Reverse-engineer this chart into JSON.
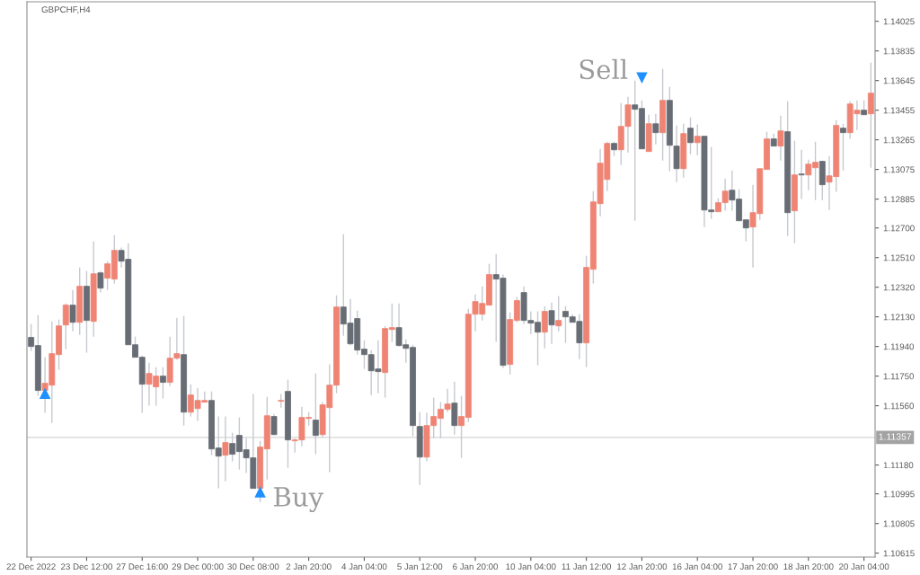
{
  "chart_data": {
    "type": "candlestick",
    "title": "GBPCHF,H4",
    "categories": [
      "22 Dec 2022",
      null,
      null,
      null,
      null,
      null,
      null,
      null,
      "23 Dec 12:00",
      null,
      null,
      null,
      null,
      null,
      null,
      null,
      "27 Dec 16:00",
      null,
      null,
      null,
      null,
      null,
      null,
      null,
      "29 Dec 00:00",
      null,
      null,
      null,
      null,
      null,
      null,
      null,
      "30 Dec 08:00",
      null,
      null,
      null,
      null,
      null,
      null,
      null,
      "2 Jan 20:00",
      null,
      null,
      null,
      null,
      null,
      null,
      null,
      "4 Jan 04:00",
      null,
      null,
      null,
      null,
      null,
      null,
      null,
      "5 Jan 12:00",
      null,
      null,
      null,
      null,
      null,
      null,
      null,
      "6 Jan 20:00",
      null,
      null,
      null,
      null,
      null,
      null,
      null,
      "10 Jan 04:00",
      null,
      null,
      null,
      null,
      null,
      null,
      null,
      "11 Jan 12:00",
      null,
      null,
      null,
      null,
      null,
      null,
      null,
      "12 Jan 20:00",
      null,
      null,
      null,
      null,
      null,
      null,
      null,
      "16 Jan 04:00",
      null,
      null,
      null,
      null,
      null,
      null,
      null,
      "17 Jan 20:00",
      null,
      null,
      null,
      null,
      null,
      null,
      null,
      "18 Jan 20:00",
      null,
      null,
      null,
      null,
      null,
      null,
      null,
      "20 Jan 04:00",
      null
    ],
    "ohlc": [
      [
        1.11998,
        1.12084,
        1.11911,
        1.1194
      ],
      [
        1.11946,
        1.12142,
        1.11623,
        1.11658
      ],
      [
        1.11658,
        1.11871,
        1.11514,
        1.11704
      ],
      [
        1.11692,
        1.12101,
        1.1145,
        1.11894
      ],
      [
        1.11888,
        1.12113,
        1.1179,
        1.12072
      ],
      [
        1.12078,
        1.12216,
        1.11923,
        1.12205
      ],
      [
        1.12205,
        1.12303,
        1.12038,
        1.12095
      ],
      [
        1.12095,
        1.12447,
        1.12015,
        1.12326
      ],
      [
        1.12326,
        1.12424,
        1.119,
        1.12107
      ],
      [
        1.12101,
        1.12614,
        1.12003,
        1.12406
      ],
      [
        1.12412,
        1.12424,
        1.12286,
        1.12314
      ],
      [
        1.12378,
        1.12487,
        1.12303,
        1.1247
      ],
      [
        1.12372,
        1.12654,
        1.12343,
        1.12556
      ],
      [
        1.12556,
        1.12574,
        1.12447,
        1.12487
      ],
      [
        1.12499,
        1.12602,
        1.11951,
        1.11951
      ],
      [
        1.11951,
        1.12003,
        1.11871,
        1.11871
      ],
      [
        1.11871,
        1.11882,
        1.11514,
        1.11698
      ],
      [
        1.11698,
        1.11836,
        1.1156,
        1.11767
      ],
      [
        1.11681,
        1.11807,
        1.1156,
        1.1175
      ],
      [
        1.1175,
        1.11807,
        1.11606,
        1.1171
      ],
      [
        1.1171,
        1.12003,
        1.11686,
        1.11865
      ],
      [
        1.11865,
        1.12124,
        1.11854,
        1.11894
      ],
      [
        1.11888,
        1.12136,
        1.11433,
        1.11519
      ],
      [
        1.11519,
        1.11698,
        1.11491,
        1.11629
      ],
      [
        1.11542,
        1.11675,
        1.11462,
        1.11594
      ],
      [
        1.11583,
        1.11652,
        1.11583,
        1.11594
      ],
      [
        1.11594,
        1.11652,
        1.11243,
        1.11283
      ],
      [
        1.11289,
        1.11491,
        1.1103,
        1.11237
      ],
      [
        1.11243,
        1.11491,
        1.11076,
        1.11324
      ],
      [
        1.11318,
        1.11387,
        1.11203,
        1.11249
      ],
      [
        1.1137,
        1.11485,
        1.11151,
        1.11266
      ],
      [
        1.11278,
        1.11352,
        1.11128,
        1.11226
      ],
      [
        1.11226,
        1.11635,
        1.1103,
        1.1103
      ],
      [
        1.1103,
        1.11335,
        1.10943,
        1.11295
      ],
      [
        1.11283,
        1.11617,
        1.11087,
        1.11496
      ],
      [
        1.11491,
        1.11508,
        1.11375,
        1.11375
      ],
      [
        1.11589,
        1.11635,
        1.11548,
        1.11594
      ],
      [
        1.11652,
        1.11727,
        1.11162,
        1.11341
      ],
      [
        1.11335,
        1.11352,
        1.1126,
        1.11341
      ],
      [
        1.11341,
        1.11554,
        1.113,
        1.11485
      ],
      [
        1.11479,
        1.11519,
        1.11433,
        1.11485
      ],
      [
        1.11468,
        1.11767,
        1.11249,
        1.1137
      ],
      [
        1.11375,
        1.11583,
        1.11358,
        1.11566
      ],
      [
        1.11548,
        1.11825,
        1.11134,
        1.11692
      ],
      [
        1.11692,
        1.12268,
        1.1164,
        1.12193
      ],
      [
        1.12193,
        1.1266,
        1.12009,
        1.12084
      ],
      [
        1.1209,
        1.12245,
        1.11946,
        1.11957
      ],
      [
        1.12119,
        1.1217,
        1.11888,
        1.11917
      ],
      [
        1.11923,
        1.1198,
        1.11796,
        1.11888
      ],
      [
        1.11888,
        1.11917,
        1.11629,
        1.11784
      ],
      [
        1.11796,
        1.1198,
        1.1164,
        1.11779
      ],
      [
        1.11773,
        1.12072,
        1.11612,
        1.12055
      ],
      [
        1.12049,
        1.12216,
        1.11969,
        1.12061
      ],
      [
        1.12061,
        1.12216,
        1.1194,
        1.11946
      ],
      [
        1.11951,
        1.11986,
        1.11836,
        1.11928
      ],
      [
        1.11934,
        1.11951,
        1.11364,
        1.11433
      ],
      [
        1.11427,
        1.11519,
        1.11053,
        1.11231
      ],
      [
        1.11231,
        1.11514,
        1.11203,
        1.11433
      ],
      [
        1.11433,
        1.11612,
        1.11352,
        1.11491
      ],
      [
        1.11479,
        1.11583,
        1.11352,
        1.11537
      ],
      [
        1.11537,
        1.11669,
        1.11519,
        1.11571
      ],
      [
        1.11577,
        1.11715,
        1.11375,
        1.11433
      ],
      [
        1.11433,
        1.11623,
        1.11226,
        1.11491
      ],
      [
        1.11485,
        1.12182,
        1.11456,
        1.12147
      ],
      [
        1.12147,
        1.12274,
        1.12038,
        1.12228
      ],
      [
        1.12147,
        1.12326,
        1.12107,
        1.12216
      ],
      [
        1.12205,
        1.1247,
        1.12205,
        1.12401
      ],
      [
        1.12401,
        1.12533,
        1.11969,
        1.12372
      ],
      [
        1.12378,
        1.12401,
        1.11802,
        1.11819
      ],
      [
        1.11825,
        1.12159,
        1.11761,
        1.12113
      ],
      [
        1.12107,
        1.12257,
        1.12095,
        1.12234
      ],
      [
        1.12286,
        1.12326,
        1.12084,
        1.12107
      ],
      [
        1.12107,
        1.12165,
        1.1202,
        1.1209
      ],
      [
        1.12095,
        1.12165,
        1.11819,
        1.12032
      ],
      [
        1.12032,
        1.12199,
        1.11928,
        1.12165
      ],
      [
        1.1217,
        1.12222,
        1.11957,
        1.12078
      ],
      [
        1.12072,
        1.12263,
        1.12038,
        1.12107
      ],
      [
        1.12165,
        1.12199,
        1.11963,
        1.1213
      ],
      [
        1.1213,
        1.12147,
        1.12095,
        1.12095
      ],
      [
        1.12101,
        1.12147,
        1.11859,
        1.11963
      ],
      [
        1.11963,
        1.12522,
        1.11807,
        1.12447
      ],
      [
        1.12435,
        1.12936,
        1.12343,
        1.12867
      ],
      [
        1.12856,
        1.13207,
        1.12775,
        1.13115
      ],
      [
        1.13011,
        1.13253,
        1.12936,
        1.13242
      ],
      [
        1.13242,
        1.13253,
        1.13161,
        1.13201
      ],
      [
        1.13201,
        1.13501,
        1.13103,
        1.13351
      ],
      [
        1.13351,
        1.13541,
        1.13184,
        1.13489
      ],
      [
        1.13489,
        1.13645,
        1.12746,
        1.13461
      ],
      [
        1.13466,
        1.13518,
        1.13207,
        1.13207
      ],
      [
        1.1319,
        1.13426,
        1.1319,
        1.13368
      ],
      [
        1.13368,
        1.13432,
        1.13236,
        1.13311
      ],
      [
        1.13311,
        1.1372,
        1.13132,
        1.13518
      ],
      [
        1.13518,
        1.13605,
        1.13063,
        1.1323
      ],
      [
        1.13225,
        1.13357,
        1.12994,
        1.1308
      ],
      [
        1.1308,
        1.13368,
        1.13023,
        1.13305
      ],
      [
        1.1334,
        1.13409,
        1.13173,
        1.13247
      ],
      [
        1.13247,
        1.13363,
        1.13167,
        1.13288
      ],
      [
        1.13288,
        1.13288,
        1.12706,
        1.12815
      ],
      [
        1.12815,
        1.13219,
        1.12758,
        1.12804
      ],
      [
        1.12804,
        1.1289,
        1.12804,
        1.12862
      ],
      [
        1.12862,
        1.13017,
        1.1281,
        1.12936
      ],
      [
        1.12942,
        1.13069,
        1.1281,
        1.12879
      ],
      [
        1.12885,
        1.12948,
        1.12746,
        1.12746
      ],
      [
        1.12752,
        1.12752,
        1.12614,
        1.127
      ],
      [
        1.12706,
        1.12977,
        1.12447,
        1.12798
      ],
      [
        1.12792,
        1.1308,
        1.12752,
        1.1308
      ],
      [
        1.13075,
        1.13317,
        1.13075,
        1.13271
      ],
      [
        1.13271,
        1.13305,
        1.13225,
        1.13225
      ],
      [
        1.13225,
        1.1342,
        1.13132,
        1.13322
      ],
      [
        1.13317,
        1.13512,
        1.12648,
        1.12798
      ],
      [
        1.1281,
        1.13259,
        1.12602,
        1.1304
      ],
      [
        1.13046,
        1.13201,
        1.12885,
        1.1304
      ],
      [
        1.1304,
        1.13138,
        1.12942,
        1.13109
      ],
      [
        1.13086,
        1.13253,
        1.12879,
        1.13121
      ],
      [
        1.13127,
        1.13132,
        1.12879,
        1.12977
      ],
      [
        1.12994,
        1.13161,
        1.12815,
        1.13034
      ],
      [
        1.13029,
        1.13391,
        1.12931,
        1.13357
      ],
      [
        1.1334,
        1.13368,
        1.13069,
        1.13311
      ],
      [
        1.13311,
        1.13512,
        1.13271,
        1.13495
      ],
      [
        1.13432,
        1.13518,
        1.13328,
        1.13455
      ],
      [
        1.13455,
        1.13518,
        1.13426,
        1.13426
      ],
      [
        1.13432,
        1.1376,
        1.13086,
        1.13564
      ]
    ],
    "colors": [
      "#686d75",
      "#686d75",
      "#ef8474",
      "#ef8474",
      "#ef8474",
      "#ef8474",
      "#686d75",
      "#ef8474",
      "#686d75",
      "#ef8474",
      "#686d75",
      "#ef8474",
      "#ef8474",
      "#686d75",
      "#686d75",
      "#686d75",
      "#686d75",
      "#ef8474",
      "#ef8474",
      "#686d75",
      "#ef8474",
      "#ef8474",
      "#686d75",
      "#ef8474",
      "#ef8474",
      "#ef8474",
      "#686d75",
      "#686d75",
      "#ef8474",
      "#686d75",
      "#686d75",
      "#686d75",
      "#686d75",
      "#ef8474",
      "#ef8474",
      "#686d75",
      "#ef8474",
      "#686d75",
      "#ef8474",
      "#ef8474",
      "#ef8474",
      "#686d75",
      "#ef8474",
      "#ef8474",
      "#ef8474",
      "#686d75",
      "#686d75",
      "#686d75",
      "#686d75",
      "#686d75",
      "#686d75",
      "#ef8474",
      "#ef8474",
      "#686d75",
      "#686d75",
      "#686d75",
      "#686d75",
      "#ef8474",
      "#ef8474",
      "#ef8474",
      "#ef8474",
      "#686d75",
      "#ef8474",
      "#ef8474",
      "#ef8474",
      "#ef8474",
      "#ef8474",
      "#686d75",
      "#686d75",
      "#ef8474",
      "#ef8474",
      "#686d75",
      "#686d75",
      "#686d75",
      "#ef8474",
      "#686d75",
      "#ef8474",
      "#686d75",
      "#686d75",
      "#686d75",
      "#ef8474",
      "#ef8474",
      "#ef8474",
      "#ef8474",
      "#686d75",
      "#ef8474",
      "#ef8474",
      "#686d75",
      "#686d75",
      "#ef8474",
      "#686d75",
      "#ef8474",
      "#686d75",
      "#686d75",
      "#ef8474",
      "#686d75",
      "#ef8474",
      "#686d75",
      "#686d75",
      "#ef8474",
      "#ef8474",
      "#686d75",
      "#686d75",
      "#686d75",
      "#ef8474",
      "#ef8474",
      "#ef8474",
      "#686d75",
      "#ef8474",
      "#686d75",
      "#ef8474",
      "#686d75",
      "#ef8474",
      "#ef8474",
      "#686d75",
      "#ef8474",
      "#ef8474",
      "#686d75",
      "#ef8474",
      "#ef8474",
      "#686d75",
      "#ef8474"
    ],
    "series": [
      {
        "type": "scatter",
        "name": "Buy",
        "color": "#1e90ff",
        "marker": "triangle",
        "values": [
          null,
          null,
          1.1164,
          null,
          null,
          null,
          null,
          null,
          null,
          null,
          null,
          null,
          null,
          null,
          null,
          null,
          null,
          null,
          null,
          null,
          null,
          null,
          null,
          null,
          null,
          null,
          null,
          null,
          null,
          null,
          null,
          null,
          null,
          1.11007,
          null,
          null,
          null,
          null,
          null,
          null,
          null,
          null,
          null,
          null,
          null,
          null,
          null,
          null,
          null,
          null,
          null,
          null,
          null,
          null,
          null,
          null,
          null,
          null,
          null,
          null,
          null,
          null,
          null,
          null,
          null,
          null,
          null,
          null,
          null,
          null,
          null,
          null,
          null,
          null,
          null,
          null,
          null,
          null,
          null,
          null,
          null,
          null,
          null,
          null,
          null,
          null,
          null,
          null,
          null,
          null,
          null,
          null,
          null,
          null,
          null,
          null,
          null,
          null,
          null,
          null,
          null,
          null,
          null,
          null,
          null,
          null,
          null,
          null,
          null,
          null,
          null,
          null,
          null,
          null,
          null,
          null,
          null,
          null,
          null,
          null,
          null,
          null
        ]
      },
      {
        "type": "scatter",
        "name": "Sell",
        "color": "#1e90ff",
        "marker": "triangle",
        "values": [
          null,
          null,
          null,
          null,
          null,
          null,
          null,
          null,
          null,
          null,
          null,
          null,
          null,
          null,
          null,
          null,
          null,
          null,
          null,
          null,
          null,
          null,
          null,
          null,
          null,
          null,
          null,
          null,
          null,
          null,
          null,
          null,
          null,
          null,
          null,
          null,
          null,
          null,
          null,
          null,
          null,
          null,
          null,
          null,
          null,
          null,
          null,
          null,
          null,
          null,
          null,
          null,
          null,
          null,
          null,
          null,
          null,
          null,
          null,
          null,
          null,
          null,
          null,
          null,
          null,
          null,
          null,
          null,
          null,
          null,
          null,
          null,
          null,
          null,
          null,
          null,
          null,
          null,
          null,
          null,
          null,
          null,
          null,
          null,
          null,
          null,
          null,
          null,
          1.13662,
          null,
          null,
          null,
          null,
          null,
          null,
          null,
          null,
          null,
          null,
          null,
          null,
          null,
          null,
          null,
          null,
          null,
          null,
          null,
          null,
          null,
          null,
          null,
          null,
          null,
          null,
          null,
          null,
          null,
          null,
          null,
          null,
          null
        ]
      }
    ],
    "ylim": [
      1.1059,
      1.1415
    ],
    "yticks": [
      1.14025,
      1.13835,
      1.13645,
      1.13455,
      1.13265,
      1.13075,
      1.12885,
      {
        "value": 1.127,
        "label": "1.12700"
      },
      {
        "value": 1.1251,
        "label": "1.12510"
      },
      {
        "value": 1.1232,
        "label": "1.12320"
      },
      {
        "value": 1.1213,
        "label": "1.12130"
      },
      {
        "value": 1.1194,
        "label": "1.11940"
      },
      {
        "value": 1.1175,
        "label": "1.11750"
      },
      {
        "value": 1.1156,
        "label": "1.11560"
      },
      {
        "value": 1.1118,
        "label": "1.11180"
      },
      1.10995,
      1.10805,
      1.10615
    ],
    "ref_lines": [
      {
        "axis": "y",
        "value": 1.11357,
        "label": "1.11357",
        "color": "#d4d4d4"
      }
    ]
  }
}
